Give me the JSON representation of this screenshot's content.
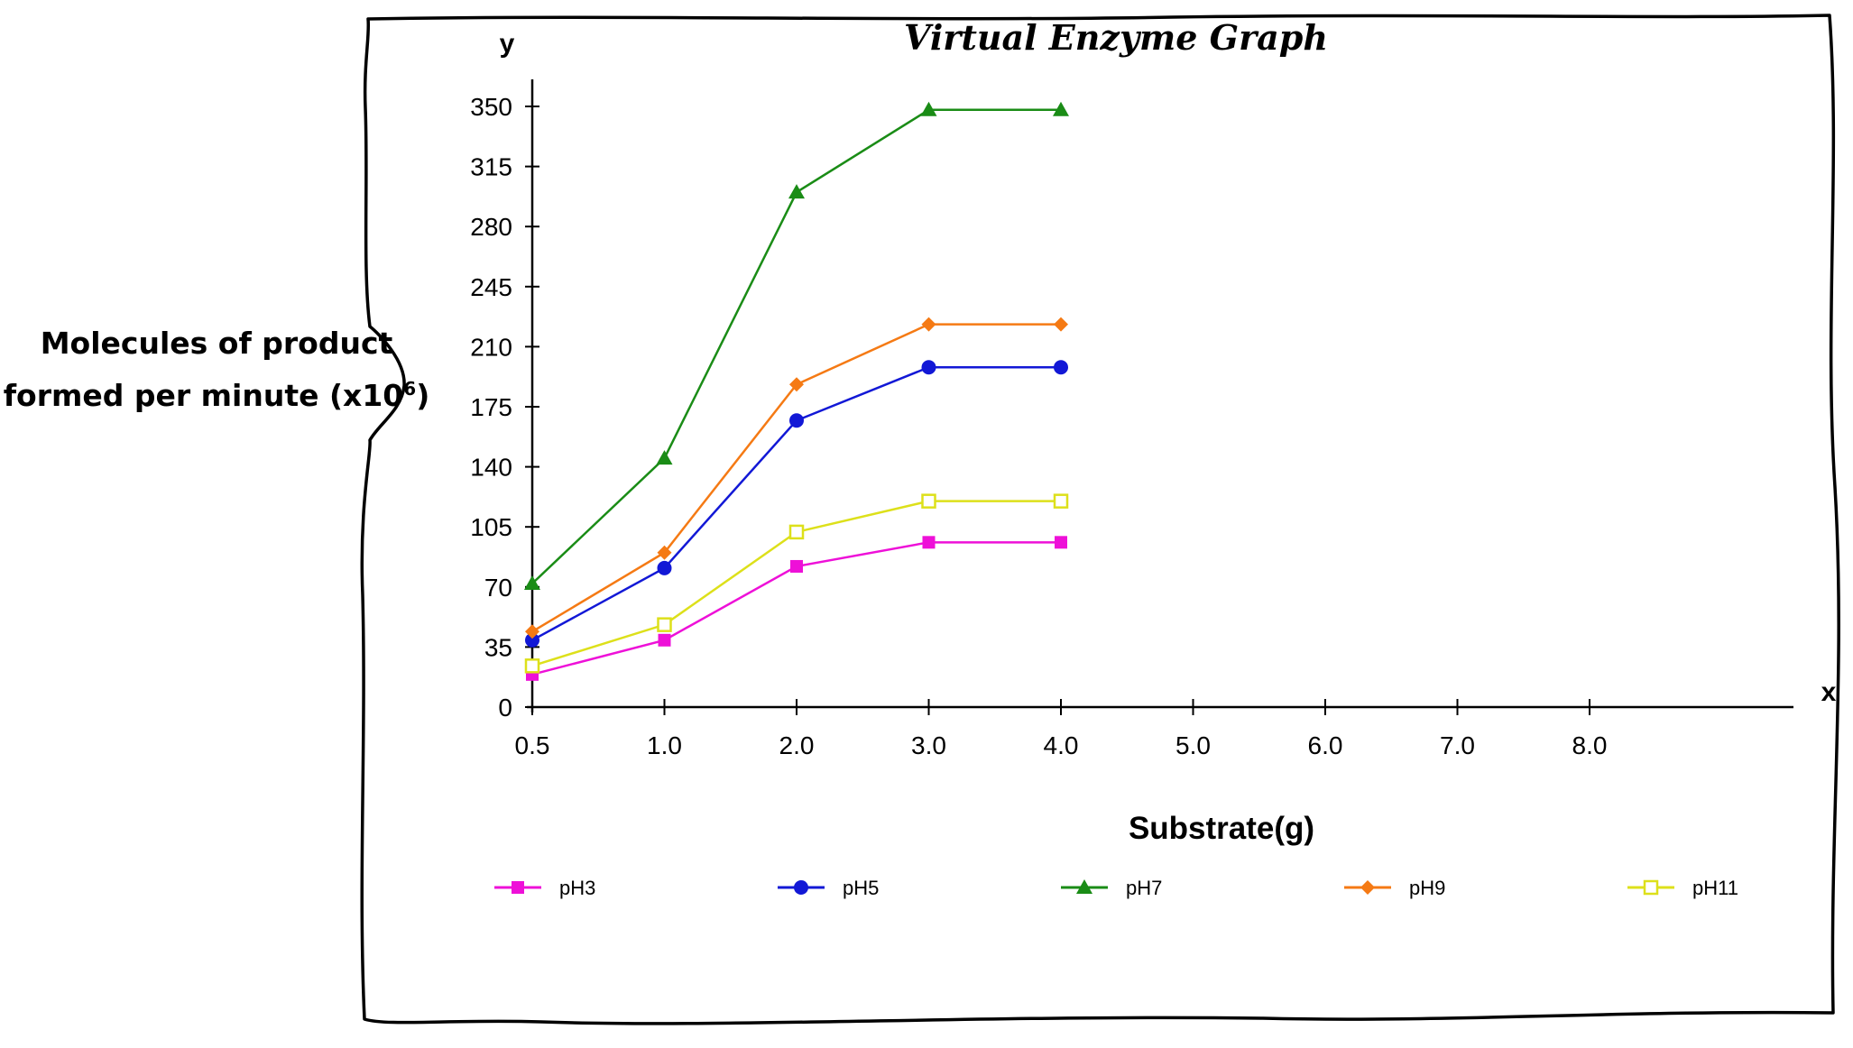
{
  "chart_data": {
    "type": "line",
    "title": "Virtual Enzyme Graph",
    "y_axis_letter": "y",
    "x_axis_letter": "x",
    "xlabel": "Substrate(g)",
    "ylabel_line1": "Molecules of product",
    "ylabel_line2_prefix": "formed per minute (x10",
    "ylabel_exponent": "6",
    "ylabel_line2_suffix": ")",
    "x_tick_labels": [
      "0.5",
      "1.0",
      "2.0",
      "3.0",
      "4.0",
      "5.0",
      "6.0",
      "7.0",
      "8.0"
    ],
    "y_ticks": [
      0,
      35,
      70,
      105,
      140,
      175,
      210,
      245,
      280,
      315,
      350
    ],
    "ylim": [
      0,
      350
    ],
    "legend_position": "bottom",
    "series": [
      {
        "name": "pH3",
        "color": "#EE10D8",
        "marker": "square-filled",
        "values": [
          19,
          39,
          82,
          96,
          96
        ]
      },
      {
        "name": "pH5",
        "color": "#1218D6",
        "marker": "circle-filled",
        "values": [
          39,
          81,
          167,
          198,
          198
        ]
      },
      {
        "name": "pH7",
        "color": "#1A8C16",
        "marker": "triangle-filled",
        "values": [
          72,
          145,
          300,
          348,
          348
        ]
      },
      {
        "name": "pH9",
        "color": "#F57A14",
        "marker": "diamond-filled",
        "values": [
          44,
          90,
          188,
          223,
          223
        ]
      },
      {
        "name": "pH11",
        "color": "#DDE01A",
        "marker": "square-open",
        "values": [
          24,
          48,
          102,
          120,
          120
        ]
      }
    ]
  }
}
